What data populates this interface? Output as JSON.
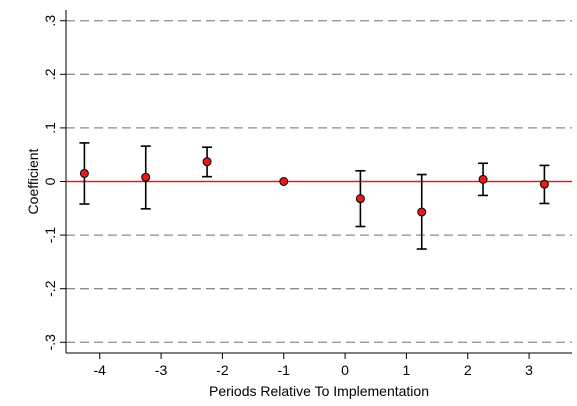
{
  "chart_data": {
    "type": "scatter",
    "xlabel": "Periods Relative To Implementation",
    "ylabel": "Coefficient",
    "xlim": [
      -4.55,
      3.7
    ],
    "ylim": [
      -0.32,
      0.32
    ],
    "xticks": [
      -4,
      -3,
      -2,
      -1,
      0,
      1,
      2,
      3
    ],
    "xtick_labels": [
      "-4",
      "-3",
      "-2",
      "-1",
      "0",
      "1",
      "2",
      "3"
    ],
    "yticks": [
      0.3,
      0.2,
      0.1,
      0,
      -0.1,
      -0.2,
      -0.3
    ],
    "ytick_labels": [
      ".3",
      ".2",
      ".1",
      "0",
      "-.1",
      "-.2",
      "-.3"
    ],
    "grid": "horizontal dashed",
    "reference_line": {
      "y": 0,
      "color": "#e41a1c"
    },
    "marker_color": "#e41a1c",
    "series": [
      {
        "points": [
          {
            "x": -4.25,
            "y": 0.015,
            "ci_low": -0.042,
            "ci_high": 0.072
          },
          {
            "x": -3.25,
            "y": 0.008,
            "ci_low": -0.051,
            "ci_high": 0.066
          },
          {
            "x": -2.25,
            "y": 0.037,
            "ci_low": 0.009,
            "ci_high": 0.064
          },
          {
            "x": -1.0,
            "y": 0.0,
            "ci_low": null,
            "ci_high": null
          },
          {
            "x": 0.25,
            "y": -0.032,
            "ci_low": -0.084,
            "ci_high": 0.02
          },
          {
            "x": 1.25,
            "y": -0.057,
            "ci_low": -0.126,
            "ci_high": 0.013
          },
          {
            "x": 2.25,
            "y": 0.004,
            "ci_low": -0.026,
            "ci_high": 0.034
          },
          {
            "x": 3.25,
            "y": -0.005,
            "ci_low": -0.041,
            "ci_high": 0.03
          }
        ]
      }
    ]
  }
}
